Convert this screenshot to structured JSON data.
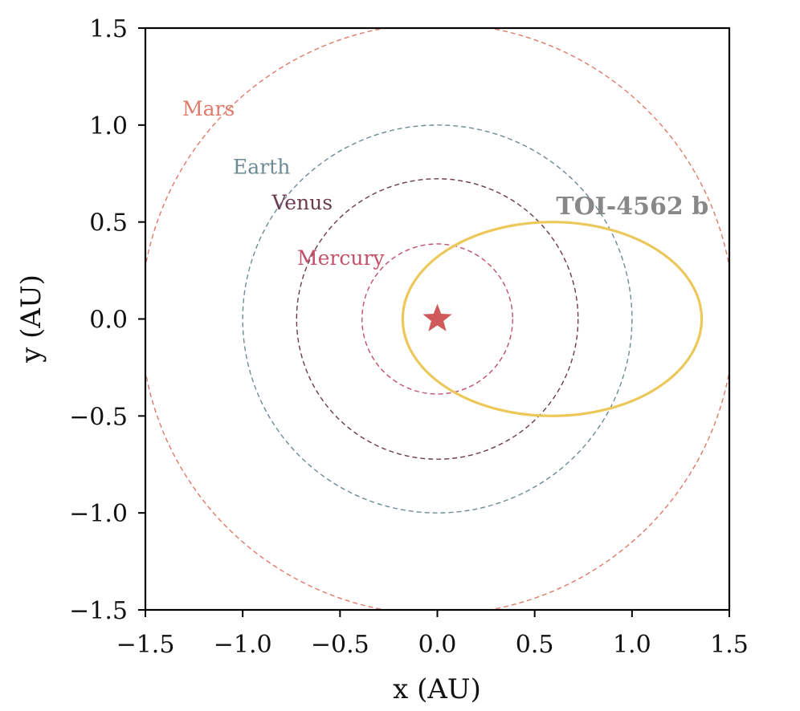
{
  "chart_data": {
    "type": "scatter",
    "title": "",
    "xlabel": "x (AU)",
    "ylabel": "y (AU)",
    "xlim": [
      -1.5,
      1.5
    ],
    "ylim": [
      -1.5,
      1.5
    ],
    "xticks": [
      -1.5,
      -1.0,
      -0.5,
      0.0,
      0.5,
      1.0,
      1.5
    ],
    "yticks": [
      -1.5,
      -1.0,
      -0.5,
      0.0,
      0.5,
      1.0,
      1.5
    ],
    "xtick_labels": [
      "−1.5",
      "−1.0",
      "−0.5",
      "0.0",
      "0.5",
      "1.0",
      "1.5"
    ],
    "ytick_labels": [
      "−1.5",
      "−1.0",
      "−0.5",
      "0.0",
      "0.5",
      "1.0",
      "1.5"
    ],
    "grid": false,
    "star": {
      "x": 0.0,
      "y": 0.0,
      "color": "#d05a5a"
    },
    "orbits": [
      {
        "name": "Mercury",
        "label": "Mercury",
        "a": 0.387,
        "e": 0.0,
        "center_x": 0.0,
        "center_y": 0.0,
        "color": "#c2506a",
        "style": "dashed",
        "label_x": -0.72,
        "label_y": 0.28
      },
      {
        "name": "Venus",
        "label": "Venus",
        "a": 0.723,
        "e": 0.0,
        "center_x": 0.0,
        "center_y": 0.0,
        "color": "#6b3a4e",
        "style": "dashed",
        "label_x": -0.85,
        "label_y": 0.565
      },
      {
        "name": "Earth",
        "label": "Earth",
        "a": 1.0,
        "e": 0.0,
        "center_x": 0.0,
        "center_y": 0.0,
        "color": "#6e8a93",
        "style": "dashed",
        "label_x": -1.05,
        "label_y": 0.75
      },
      {
        "name": "Mars",
        "label": "Mars",
        "a": 1.524,
        "e": 0.0,
        "center_x": 0.0,
        "center_y": 0.0,
        "color": "#e07a6a",
        "style": "dashed",
        "label_x": -1.31,
        "label_y": 1.05
      },
      {
        "name": "TOI-4562 b",
        "label": "TOI-4562 b",
        "a": 0.768,
        "b": 0.5,
        "center_x": 0.59,
        "center_y": 0.0,
        "color": "#ecc85a",
        "style": "solid",
        "label_x": 0.61,
        "label_y": 0.54
      }
    ],
    "title_label_color": "#888888"
  }
}
